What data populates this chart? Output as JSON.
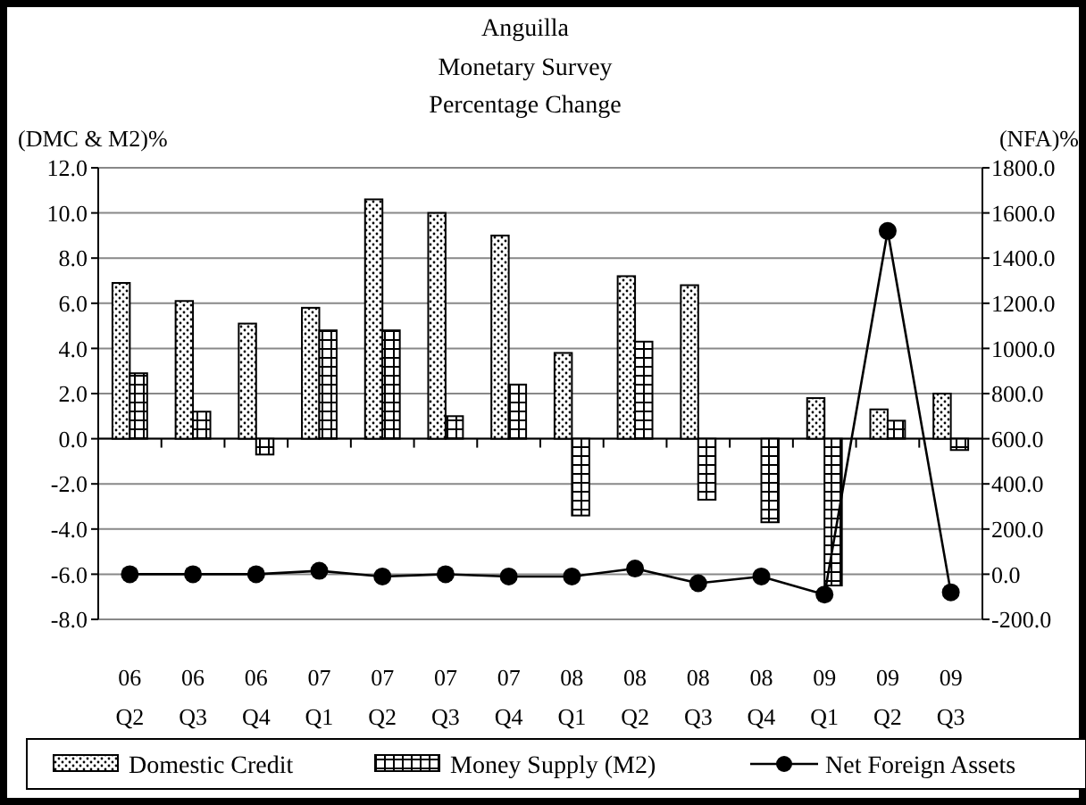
{
  "chart_data": {
    "type": "bar",
    "title": "Anguilla",
    "subtitle": "Monetary Survey\nPercentage Change",
    "ylabel": "(DMC & M2)%",
    "y2label": "(NFA)%",
    "categories": [
      "06 Q2",
      "06 Q3",
      "06 Q4",
      "07 Q1",
      "07 Q2",
      "07 Q3",
      "07 Q4",
      "08 Q1",
      "08 Q2",
      "08 Q3",
      "08 Q4",
      "09 Q1",
      "09 Q2",
      "09 Q3"
    ],
    "series": [
      {
        "name": "Domestic Credit",
        "color": "#000000",
        "values": [
          6.9,
          6.1,
          5.1,
          5.8,
          10.6,
          10.0,
          9.0,
          3.8,
          7.2,
          6.8,
          null,
          1.8,
          1.3,
          2.0
        ]
      },
      {
        "name": "Money Supply (M2)",
        "color": "#000000",
        "values": [
          2.9,
          1.2,
          -0.7,
          4.8,
          4.8,
          1.0,
          2.4,
          -3.4,
          4.3,
          -2.7,
          -3.7,
          -6.5,
          0.8,
          -0.5
        ]
      },
      {
        "name": "Net Foreign Assets",
        "type": "line",
        "axis": "y2",
        "color": "#000000",
        "marker": "circle",
        "values": [
          0,
          0,
          0,
          15,
          -10,
          0,
          -10,
          -10,
          25,
          -40,
          -10,
          -90,
          1520,
          -80
        ]
      }
    ],
    "ylim": [
      -8,
      12
    ],
    "yticks": [
      {
        "value": -8,
        "label": "-8.0"
      },
      {
        "value": -6,
        "label": "-6.0"
      },
      {
        "value": -4,
        "label": "-4.0"
      },
      {
        "value": -2,
        "label": "-2.0"
      },
      {
        "value": 0,
        "label": "0.0"
      },
      {
        "value": 2,
        "label": "2.0"
      },
      {
        "value": 4,
        "label": "4.0"
      },
      {
        "value": 6,
        "label": "6.0"
      },
      {
        "value": 8,
        "label": "8.0"
      },
      {
        "value": 10,
        "label": "10.0"
      },
      {
        "value": 12,
        "label": "12.0"
      }
    ],
    "y2lim": [
      -200,
      1800
    ],
    "y2ticks": [
      {
        "value": -200,
        "label": "-200.0"
      },
      {
        "value": 0,
        "label": "0.0"
      },
      {
        "value": 200,
        "label": "200.0"
      },
      {
        "value": 400,
        "label": "400.0"
      },
      {
        "value": 600,
        "label": "600.0"
      },
      {
        "value": 800,
        "label": "800.0"
      },
      {
        "value": 1000,
        "label": "1000.0"
      },
      {
        "value": 1200,
        "label": "1200.0"
      },
      {
        "value": 1400,
        "label": "1400.0"
      },
      {
        "value": 1600,
        "label": "1600.0"
      },
      {
        "value": 1800,
        "label": "1800.0"
      }
    ],
    "grid": "y",
    "legend": "bottom"
  }
}
